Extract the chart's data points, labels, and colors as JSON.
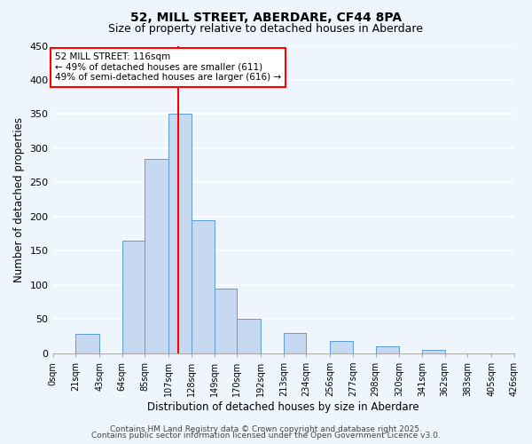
{
  "title": "52, MILL STREET, ABERDARE, CF44 8PA",
  "subtitle": "Size of property relative to detached houses in Aberdare",
  "xlabel": "Distribution of detached houses by size in Aberdare",
  "ylabel": "Number of detached properties",
  "bar_edges": [
    0,
    21,
    43,
    64,
    85,
    107,
    128,
    149,
    170,
    192,
    213,
    234,
    256,
    277,
    298,
    320,
    341,
    362,
    383,
    405,
    426
  ],
  "bar_heights": [
    0,
    29,
    0,
    165,
    285,
    350,
    195,
    95,
    50,
    0,
    30,
    0,
    18,
    0,
    10,
    0,
    5,
    0,
    0,
    0,
    3
  ],
  "bar_color": "#c6d9f0",
  "bar_edge_color": "#5b9bd5",
  "vline_x": 116,
  "vline_color": "#ff0000",
  "annotation_line1": "52 MILL STREET: 116sqm",
  "annotation_line2": "← 49% of detached houses are smaller (611)",
  "annotation_line3": "49% of semi-detached houses are larger (616) →",
  "annotation_box_color": "#ffffff",
  "annotation_box_edgecolor": "#ff0000",
  "ylim": [
    0,
    450
  ],
  "tick_labels": [
    "0sqm",
    "21sqm",
    "43sqm",
    "64sqm",
    "85sqm",
    "107sqm",
    "128sqm",
    "149sqm",
    "170sqm",
    "192sqm",
    "213sqm",
    "234sqm",
    "256sqm",
    "277sqm",
    "298sqm",
    "320sqm",
    "341sqm",
    "362sqm",
    "383sqm",
    "405sqm",
    "426sqm"
  ],
  "footer1": "Contains HM Land Registry data © Crown copyright and database right 2025.",
  "footer2": "Contains public sector information licensed under the Open Government Licence v3.0.",
  "background_color": "#eef5fc",
  "grid_color": "#ffffff",
  "title_fontsize": 10,
  "subtitle_fontsize": 9,
  "axis_label_fontsize": 8.5,
  "tick_fontsize": 7,
  "footer_fontsize": 6.5
}
